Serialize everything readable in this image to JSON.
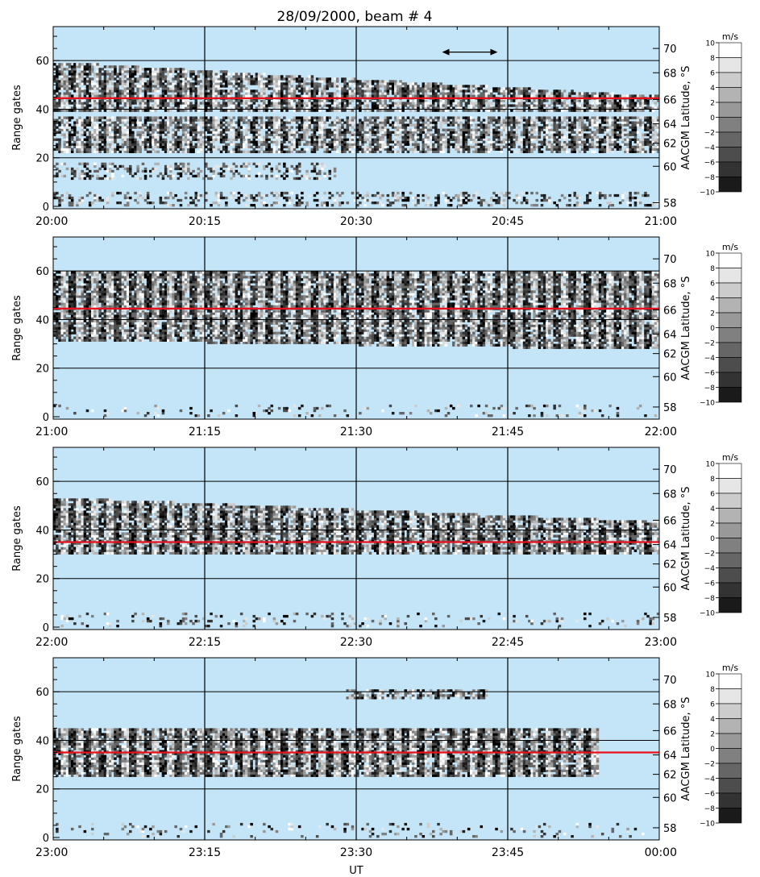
{
  "title": "28/09/2000, beam # 4",
  "y_label": "Range gates",
  "y2_label": "AACGM Latitude, °S",
  "x_label": "UT",
  "colorbar": {
    "unit": "m/s",
    "ticks": [
      "10",
      "8",
      "6",
      "4",
      "2",
      "0",
      "−2",
      "−4",
      "−6",
      "−8",
      "−10"
    ],
    "values": [
      10,
      8,
      6,
      4,
      2,
      0,
      -2,
      -4,
      -6,
      -8,
      -10
    ]
  },
  "colors": {
    "background": "#c4e5f7",
    "red_line": "#e8101c",
    "grid": "#000000"
  },
  "chart_data": [
    {
      "type": "heatmap",
      "panel": 1,
      "x_ticks": [
        "20:00",
        "20:15",
        "20:30",
        "20:45",
        "21:00"
      ],
      "x_range": [
        0,
        60
      ],
      "ylim": [
        -1,
        74
      ],
      "y_ticks": [
        0,
        20,
        40,
        60
      ],
      "y2_ticks": [
        58,
        60,
        62,
        64,
        66,
        68,
        70
      ],
      "y2_gate_positions": [
        1.5,
        16.5,
        26,
        34,
        44,
        55,
        65
      ],
      "red_line_gate": 44.5,
      "arrow_x": [
        38.5,
        44
      ],
      "arrow_gate": 63.5,
      "echo_bands": [
        {
          "gate_min": 39,
          "gate_max": 59,
          "t_start": 0,
          "t_end": 60,
          "tapered_to": 45,
          "density": 0.78
        },
        {
          "gate_min": 22,
          "gate_max": 37,
          "t_start": 0,
          "t_end": 60,
          "density": 0.72
        },
        {
          "gate_min": 11,
          "gate_max": 18,
          "t_start": 0,
          "t_end": 28,
          "density": 0.35
        },
        {
          "gate_min": 0,
          "gate_max": 6,
          "t_start": 0,
          "t_end": 60,
          "density": 0.3
        }
      ]
    },
    {
      "type": "heatmap",
      "panel": 2,
      "x_ticks": [
        "21:00",
        "21:15",
        "21:30",
        "21:45",
        "22:00"
      ],
      "x_range": [
        0,
        60
      ],
      "ylim": [
        -1,
        74
      ],
      "y_ticks": [
        0,
        20,
        40,
        60
      ],
      "y2_ticks": [
        58,
        60,
        62,
        64,
        66,
        68,
        70
      ],
      "y2_gate_positions": [
        4,
        16.5,
        26,
        34,
        44,
        55,
        65
      ],
      "red_line_gate": 44.5,
      "echo_bands": [
        {
          "gate_min": 32,
          "gate_max": 60,
          "t_start": 0,
          "t_end": 60,
          "tapered_to": 28,
          "density": 0.82
        },
        {
          "gate_min": 0,
          "gate_max": 5,
          "t_start": 0,
          "t_end": 60,
          "density": 0.12
        }
      ]
    },
    {
      "type": "heatmap",
      "panel": 3,
      "x_ticks": [
        "22:00",
        "22:15",
        "22:30",
        "22:45",
        "23:00"
      ],
      "x_range": [
        0,
        60
      ],
      "ylim": [
        -1,
        74
      ],
      "y_ticks": [
        0,
        20,
        40,
        60
      ],
      "y2_ticks": [
        58,
        60,
        62,
        64,
        66,
        68,
        70
      ],
      "y2_gate_positions": [
        4,
        16.5,
        26,
        34,
        44,
        55,
        65
      ],
      "red_line_gate": 35,
      "echo_bands": [
        {
          "gate_min": 30,
          "gate_max": 53,
          "t_start": 0,
          "t_end": 60,
          "tapered_to": 43,
          "density": 0.8
        },
        {
          "gate_min": 0,
          "gate_max": 6,
          "t_start": 0,
          "t_end": 60,
          "density": 0.14
        }
      ]
    },
    {
      "type": "heatmap",
      "panel": 4,
      "x_ticks": [
        "23:00",
        "23:15",
        "23:30",
        "23:45",
        "00:00"
      ],
      "x_range": [
        0,
        60
      ],
      "ylim": [
        -1,
        74
      ],
      "y_ticks": [
        0,
        20,
        40,
        60
      ],
      "y2_ticks": [
        58,
        60,
        62,
        64,
        66,
        68,
        70
      ],
      "y2_gate_positions": [
        4,
        16.5,
        26,
        34,
        44,
        55,
        65
      ],
      "red_line_gate": 35,
      "echo_bands": [
        {
          "gate_min": 25,
          "gate_max": 45,
          "t_start": 0,
          "t_end": 54,
          "density": 0.85
        },
        {
          "gate_min": 57,
          "gate_max": 61,
          "t_start": 29,
          "t_end": 43,
          "density": 0.6
        },
        {
          "gate_min": 0,
          "gate_max": 6,
          "t_start": 0,
          "t_end": 60,
          "density": 0.1
        }
      ]
    }
  ]
}
